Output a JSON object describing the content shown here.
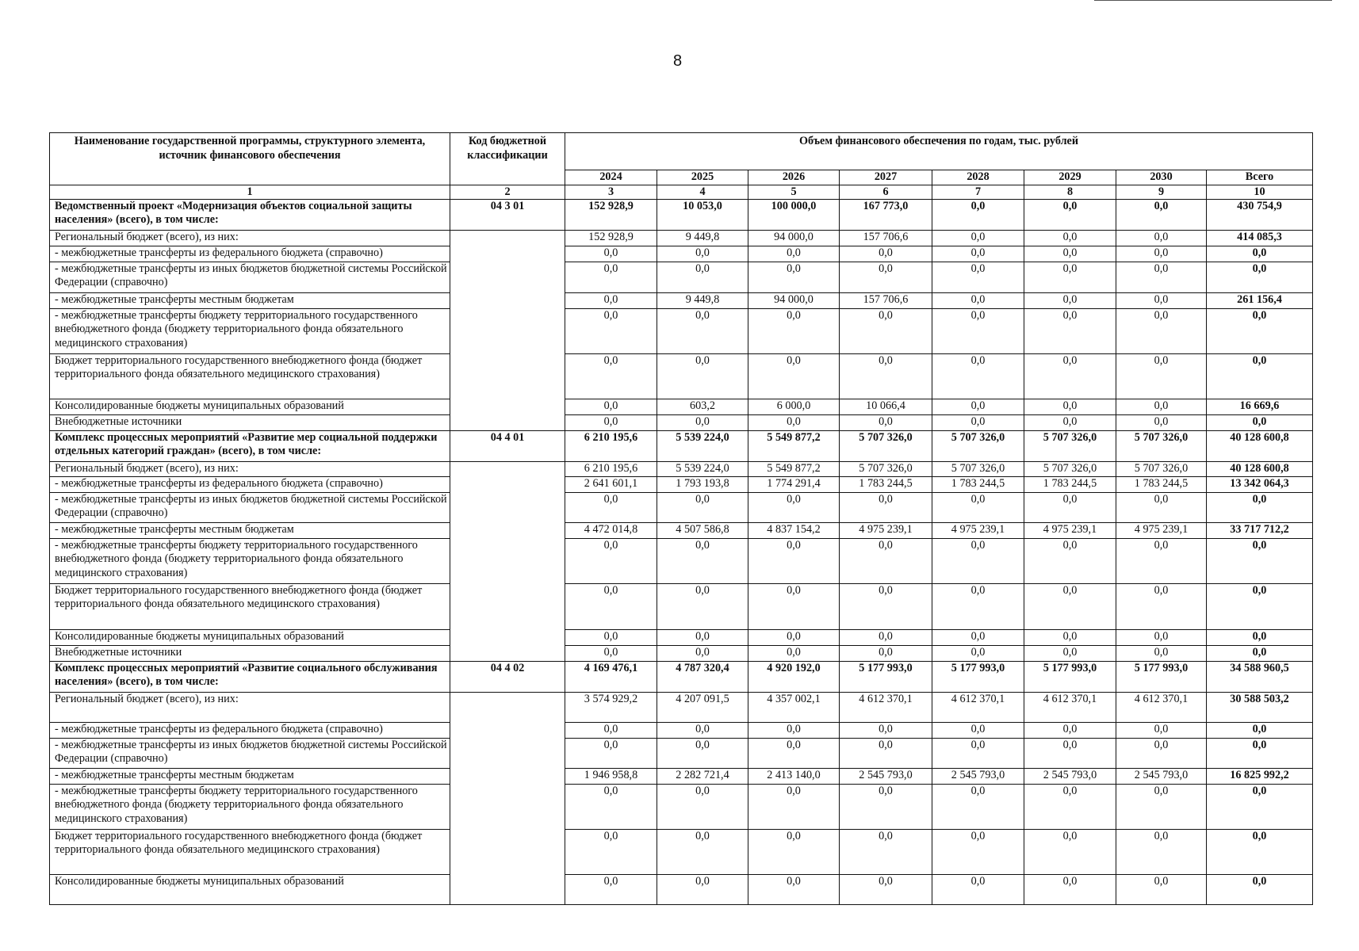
{
  "page_number": "8",
  "header": {
    "name_col": "Наименование государственной программы, структурного элемента, источник финансового обеспечения",
    "code_col": "Код бюджетной классификации",
    "volume_col": "Объем финансового обеспечения по годам, тыс. рублей",
    "years": [
      "2024",
      "2025",
      "2026",
      "2027",
      "2028",
      "2029",
      "2030",
      "Всего"
    ],
    "col_numbers": [
      "1",
      "2",
      "3",
      "4",
      "5",
      "6",
      "7",
      "8",
      "9",
      "10"
    ]
  },
  "sections": [
    {
      "code": "04 3 01",
      "rows": [
        {
          "name": "Ведомственный проект «Модернизация объектов социальной защиты населения» (всего), в том числе:",
          "values": [
            "152 928,9",
            "10 053,0",
            "100 000,0",
            "167 773,0",
            "0,0",
            "0,0",
            "0,0",
            "430 754,9"
          ]
        },
        {
          "name": "Региональный бюджет (всего), из них:",
          "values": [
            "152 928,9",
            "9 449,8",
            "94 000,0",
            "157 706,6",
            "0,0",
            "0,0",
            "0,0",
            "414 085,3"
          ]
        },
        {
          "name": "-  межбюджетные трансферты из федерального бюджета (справочно)",
          "values": [
            "0,0",
            "0,0",
            "0,0",
            "0,0",
            "0,0",
            "0,0",
            "0,0",
            "0,0"
          ]
        },
        {
          "name": "- межбюджетные трансферты из иных бюджетов бюджетной системы Российской Федерации (справочно)",
          "values": [
            "0,0",
            "0,0",
            "0,0",
            "0,0",
            "0,0",
            "0,0",
            "0,0",
            "0,0"
          ]
        },
        {
          "name": "- межбюджетные трансферты местным бюджетам",
          "values": [
            "0,0",
            "9 449,8",
            "94 000,0",
            "157 706,6",
            "0,0",
            "0,0",
            "0,0",
            "261 156,4"
          ]
        },
        {
          "name": "- межбюджетные трансферты бюджету территориального государственного внебюджетного фонда (бюджету территориального фонда обязательного медицинского страхования)",
          "values": [
            "0,0",
            "0,0",
            "0,0",
            "0,0",
            "0,0",
            "0,0",
            "0,0",
            "0,0"
          ]
        },
        {
          "name": "Бюджет территориального государственного внебюджетного фонда (бюджет территориального фонда обязательного медицинского страхования)",
          "values": [
            "0,0",
            "0,0",
            "0,0",
            "0,0",
            "0,0",
            "0,0",
            "0,0",
            "0,0"
          ]
        },
        {
          "name": "Консолидированные бюджеты муниципальных образований",
          "values": [
            "0,0",
            "603,2",
            "6 000,0",
            "10 066,4",
            "0,0",
            "0,0",
            "0,0",
            "16 669,6"
          ]
        },
        {
          "name": "Внебюджетные источники",
          "values": [
            "0,0",
            "0,0",
            "0,0",
            "0,0",
            "0,0",
            "0,0",
            "0,0",
            "0,0"
          ]
        }
      ]
    },
    {
      "code": "04 4 01",
      "rows": [
        {
          "name": "Комплекс процессных мероприятий «Развитие мер социальной поддержки отдельных категорий граждан» (всего), в том числе:",
          "values": [
            "6 210 195,6",
            "5 539 224,0",
            "5 549 877,2",
            "5 707 326,0",
            "5 707 326,0",
            "5 707 326,0",
            "5 707 326,0",
            "40 128 600,8"
          ]
        },
        {
          "name": "Региональный бюджет (всего), из них:",
          "values": [
            "6 210 195,6",
            "5 539 224,0",
            "5 549 877,2",
            "5 707 326,0",
            "5 707 326,0",
            "5 707 326,0",
            "5 707 326,0",
            "40 128 600,8"
          ]
        },
        {
          "name": "-  межбюджетные трансферты из федерального бюджета (справочно)",
          "values": [
            "2 641 601,1",
            "1 793 193,8",
            "1 774 291,4",
            "1 783 244,5",
            "1 783 244,5",
            "1 783 244,5",
            "1 783 244,5",
            "13 342 064,3"
          ]
        },
        {
          "name": "- межбюджетные трансферты из иных бюджетов бюджетной системы Российской Федерации (справочно)",
          "values": [
            "0,0",
            "0,0",
            "0,0",
            "0,0",
            "0,0",
            "0,0",
            "0,0",
            "0,0"
          ]
        },
        {
          "name": "- межбюджетные трансферты местным бюджетам",
          "values": [
            "4 472 014,8",
            "4 507 586,8",
            "4 837 154,2",
            "4 975 239,1",
            "4 975 239,1",
            "4 975 239,1",
            "4 975 239,1",
            "33 717 712,2"
          ]
        },
        {
          "name": "- межбюджетные трансферты бюджету территориального государственного внебюджетного фонда (бюджету территориального фонда обязательного медицинского страхования)",
          "values": [
            "0,0",
            "0,0",
            "0,0",
            "0,0",
            "0,0",
            "0,0",
            "0,0",
            "0,0"
          ]
        },
        {
          "name": "Бюджет территориального государственного внебюджетного фонда (бюджет территориального фонда обязательного медицинского страхования)",
          "values": [
            "0,0",
            "0,0",
            "0,0",
            "0,0",
            "0,0",
            "0,0",
            "0,0",
            "0,0"
          ]
        },
        {
          "name": "Консолидированные бюджеты муниципальных образований",
          "values": [
            "0,0",
            "0,0",
            "0,0",
            "0,0",
            "0,0",
            "0,0",
            "0,0",
            "0,0"
          ]
        },
        {
          "name": "Внебюджетные источники",
          "values": [
            "0,0",
            "0,0",
            "0,0",
            "0,0",
            "0,0",
            "0,0",
            "0,0",
            "0,0"
          ]
        }
      ]
    },
    {
      "code": "04 4 02",
      "rows": [
        {
          "name": "Комплекс процессных мероприятий «Развитие социального обслуживания населения» (всего), в том числе:",
          "values": [
            "4 169 476,1",
            "4 787 320,4",
            "4 920 192,0",
            "5 177 993,0",
            "5 177 993,0",
            "5 177 993,0",
            "5 177 993,0",
            "34 588 960,5"
          ]
        },
        {
          "name": "Региональный бюджет (всего), из них:",
          "values": [
            "3 574 929,2",
            "4 207 091,5",
            "4 357 002,1",
            "4 612 370,1",
            "4 612 370,1",
            "4 612 370,1",
            "4 612 370,1",
            "30 588 503,2"
          ]
        },
        {
          "name": "-  межбюджетные трансферты из федерального бюджета (справочно)",
          "values": [
            "0,0",
            "0,0",
            "0,0",
            "0,0",
            "0,0",
            "0,0",
            "0,0",
            "0,0"
          ]
        },
        {
          "name": "- межбюджетные трансферты из иных бюджетов бюджетной системы Российской Федерации (справочно)",
          "values": [
            "0,0",
            "0,0",
            "0,0",
            "0,0",
            "0,0",
            "0,0",
            "0,0",
            "0,0"
          ]
        },
        {
          "name": "- межбюджетные трансферты местным бюджетам",
          "values": [
            "1 946 958,8",
            "2 282 721,4",
            "2 413 140,0",
            "2 545 793,0",
            "2 545 793,0",
            "2 545 793,0",
            "2 545 793,0",
            "16 825 992,2"
          ]
        },
        {
          "name": "- межбюджетные трансферты бюджету территориального государственного внебюджетного фонда (бюджету территориального фонда обязательного медицинского страхования)",
          "values": [
            "0,0",
            "0,0",
            "0,0",
            "0,0",
            "0,0",
            "0,0",
            "0,0",
            "0,0"
          ]
        },
        {
          "name": "Бюджет территориального государственного внебюджетного фонда (бюджет территориального фонда обязательного медицинского страхования)",
          "values": [
            "0,0",
            "0,0",
            "0,0",
            "0,0",
            "0,0",
            "0,0",
            "0,0",
            "0,0"
          ]
        },
        {
          "name": "Консолидированные бюджеты муниципальных образований",
          "values": [
            "0,0",
            "0,0",
            "0,0",
            "0,0",
            "0,0",
            "0,0",
            "0,0",
            "0,0"
          ]
        }
      ]
    }
  ]
}
